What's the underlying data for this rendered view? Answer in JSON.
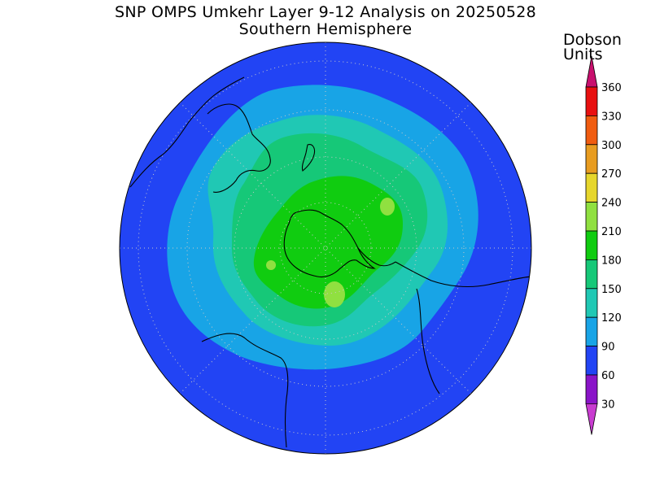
{
  "title": "SNP OMPS Umkehr Layer 9-12 Analysis on 20250528",
  "subtitle": "Southern Hemisphere",
  "units_label_1": "Dobson",
  "units_label_2": "Units",
  "colorbar": {
    "ticks": [
      "30",
      "60",
      "90",
      "120",
      "150",
      "180",
      "210",
      "240",
      "270",
      "300",
      "330",
      "360"
    ],
    "colors": {
      "below_30": "#c83cd0",
      "b30_60": "#8a14c8",
      "b60_90": "#2244f4",
      "b90_120": "#18a4e6",
      "b120_150": "#20c8b4",
      "b150_180": "#16c878",
      "b180_210": "#10cc10",
      "b210_240": "#90e040",
      "b240_270": "#e6d62c",
      "b270_300": "#e89c20",
      "b300_330": "#f05c10",
      "b330_360": "#e81010",
      "above_360": "#c8106e"
    }
  }
}
